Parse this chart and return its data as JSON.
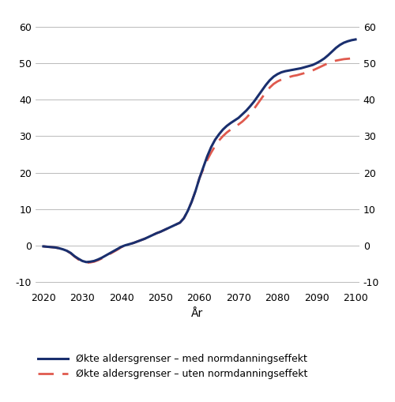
{
  "title": "",
  "xlabel": "År",
  "xlim": [
    2018,
    2101
  ],
  "ylim": [
    -12,
    64
  ],
  "yticks": [
    -10,
    0,
    10,
    20,
    30,
    40,
    50,
    60
  ],
  "xticks": [
    2020,
    2030,
    2040,
    2050,
    2060,
    2070,
    2080,
    2090,
    2100
  ],
  "line1_color": "#1a2f6e",
  "line2_color": "#e05a4e",
  "line1_label": "Økte aldersgrenser – med normdanningseffekt",
  "line2_label": "Økte aldersgrenser – uten normdanningseffekt",
  "years": [
    2020,
    2021,
    2022,
    2023,
    2024,
    2025,
    2026,
    2027,
    2028,
    2029,
    2030,
    2031,
    2032,
    2033,
    2034,
    2035,
    2036,
    2037,
    2038,
    2039,
    2040,
    2041,
    2042,
    2043,
    2044,
    2045,
    2046,
    2047,
    2048,
    2049,
    2050,
    2051,
    2052,
    2053,
    2054,
    2055,
    2056,
    2057,
    2058,
    2059,
    2060,
    2061,
    2062,
    2063,
    2064,
    2065,
    2066,
    2067,
    2068,
    2069,
    2070,
    2071,
    2072,
    2073,
    2074,
    2075,
    2076,
    2077,
    2078,
    2079,
    2080,
    2081,
    2082,
    2083,
    2084,
    2085,
    2086,
    2087,
    2088,
    2089,
    2090,
    2091,
    2092,
    2093,
    2094,
    2095,
    2096,
    2097,
    2098,
    2099,
    2100
  ],
  "line1_values": [
    -0.2,
    -0.3,
    -0.4,
    -0.5,
    -0.7,
    -1.0,
    -1.4,
    -2.0,
    -2.9,
    -3.6,
    -4.2,
    -4.5,
    -4.4,
    -4.2,
    -3.8,
    -3.3,
    -2.7,
    -2.1,
    -1.5,
    -0.9,
    -0.3,
    0.1,
    0.4,
    0.7,
    1.1,
    1.5,
    1.9,
    2.4,
    2.9,
    3.4,
    3.8,
    4.3,
    4.8,
    5.3,
    5.8,
    6.3,
    7.5,
    9.5,
    12.0,
    15.0,
    18.5,
    21.5,
    24.5,
    27.0,
    29.0,
    30.5,
    31.8,
    32.8,
    33.6,
    34.3,
    35.0,
    36.0,
    37.0,
    38.2,
    39.5,
    41.0,
    42.5,
    44.0,
    45.3,
    46.3,
    47.0,
    47.5,
    47.8,
    48.0,
    48.2,
    48.4,
    48.6,
    48.9,
    49.2,
    49.5,
    50.0,
    50.6,
    51.3,
    52.2,
    53.2,
    54.2,
    55.0,
    55.6,
    56.0,
    56.3,
    56.5
  ],
  "line2_values": [
    -0.2,
    -0.3,
    -0.4,
    -0.5,
    -0.7,
    -1.0,
    -1.4,
    -2.1,
    -3.0,
    -3.8,
    -4.4,
    -4.7,
    -4.6,
    -4.4,
    -4.0,
    -3.5,
    -2.9,
    -2.3,
    -1.7,
    -1.1,
    -0.4,
    0.0,
    0.4,
    0.7,
    1.1,
    1.5,
    1.9,
    2.4,
    2.9,
    3.4,
    3.8,
    4.3,
    4.8,
    5.3,
    5.8,
    6.3,
    7.5,
    9.5,
    12.0,
    15.0,
    18.5,
    21.0,
    23.5,
    25.5,
    27.3,
    28.8,
    30.0,
    31.0,
    31.8,
    32.5,
    33.2,
    34.0,
    35.0,
    36.2,
    37.5,
    39.0,
    40.5,
    42.0,
    43.3,
    44.3,
    45.0,
    45.5,
    45.9,
    46.2,
    46.5,
    46.7,
    47.0,
    47.3,
    47.6,
    48.0,
    48.5,
    49.0,
    49.5,
    50.0,
    50.4,
    50.7,
    50.9,
    51.1,
    51.2,
    51.3,
    51.4
  ],
  "bg_color": "#ffffff",
  "grid_color": "#b0b0b0",
  "figsize": [
    5.0,
    5.09
  ],
  "dpi": 100
}
